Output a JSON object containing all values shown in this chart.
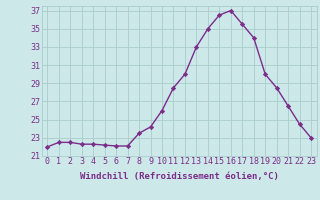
{
  "x": [
    0,
    1,
    2,
    3,
    4,
    5,
    6,
    7,
    8,
    9,
    10,
    11,
    12,
    13,
    14,
    15,
    16,
    17,
    18,
    19,
    20,
    21,
    22,
    23
  ],
  "y": [
    22.0,
    22.5,
    22.5,
    22.3,
    22.3,
    22.2,
    22.1,
    22.1,
    23.5,
    24.2,
    26.0,
    28.5,
    30.0,
    33.0,
    35.0,
    36.5,
    37.0,
    35.5,
    34.0,
    30.0,
    28.5,
    26.5,
    24.5,
    23.0
  ],
  "line_color": "#7b2d8b",
  "marker": "D",
  "marker_size": 2.2,
  "line_width": 1.0,
  "bg_color": "#cce8e8",
  "grid_color": "#aacccc",
  "tick_color": "#7b2d8b",
  "xlabel": "Windchill (Refroidissement éolien,°C)",
  "xlabel_color": "#7b2d8b",
  "xlabel_fontsize": 6.5,
  "tick_fontsize": 6.0,
  "ylim": [
    21,
    37.5
  ],
  "yticks": [
    21,
    23,
    25,
    27,
    29,
    31,
    33,
    35,
    37
  ],
  "xticks": [
    0,
    1,
    2,
    3,
    4,
    5,
    6,
    7,
    8,
    9,
    10,
    11,
    12,
    13,
    14,
    15,
    16,
    17,
    18,
    19,
    20,
    21,
    22,
    23
  ]
}
